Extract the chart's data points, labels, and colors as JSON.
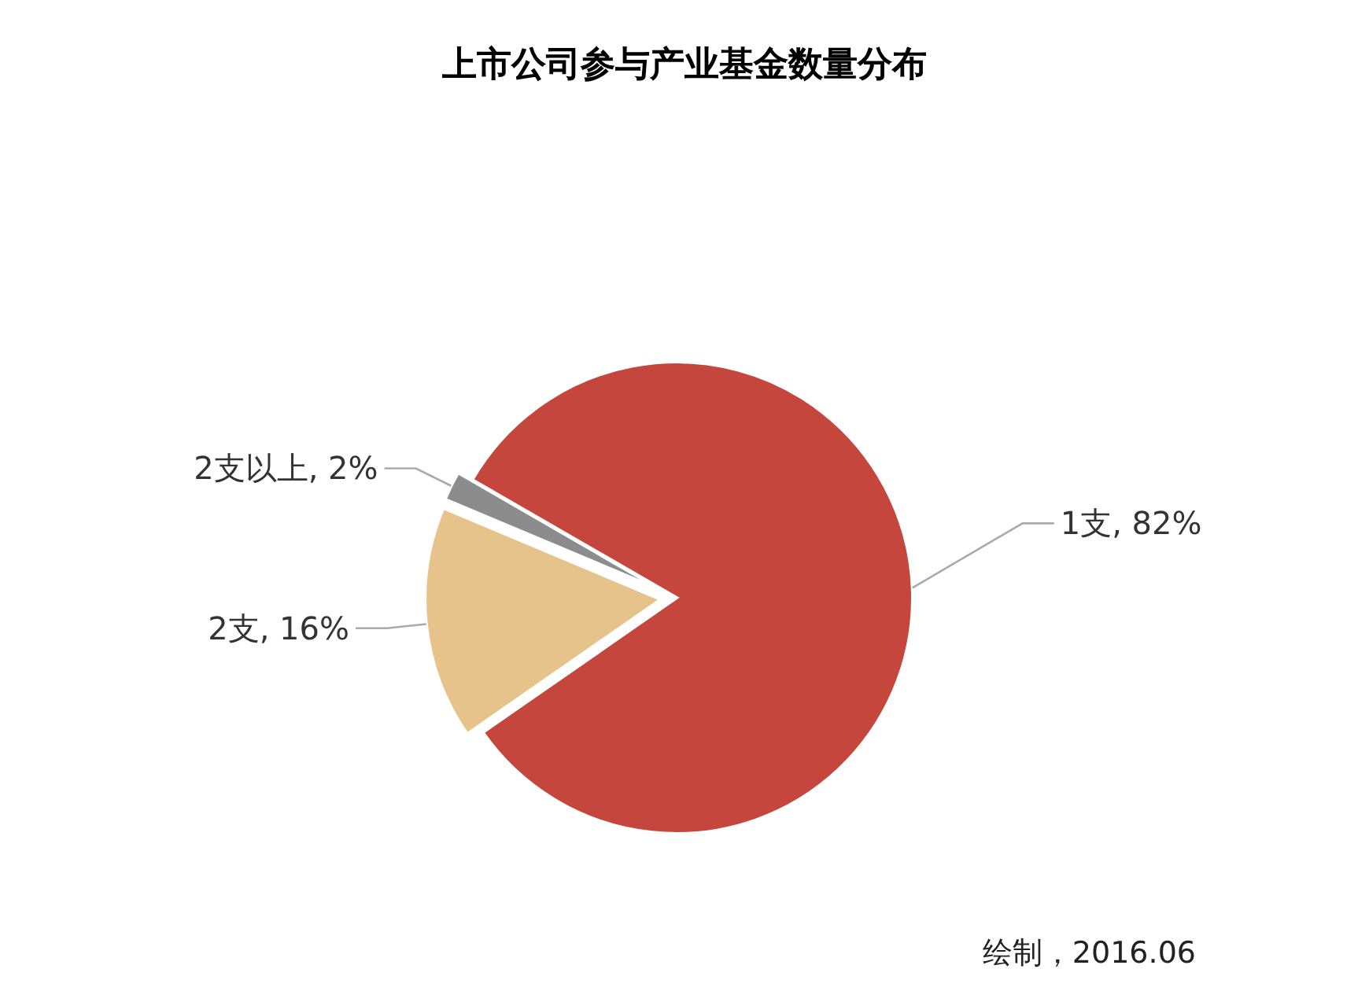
{
  "chart_data": {
    "type": "pie",
    "title": "上市公司参与产业基金数量分布",
    "categories": [
      "1支",
      "2支",
      "2支以上"
    ],
    "values": [
      82,
      16,
      2
    ],
    "value_labels": [
      "82%",
      "16%",
      "2%"
    ],
    "colors": [
      "#c4463c",
      "#e6c38a",
      "#8c8c8c"
    ],
    "annotations": [
      "绘制，2016.06"
    ]
  }
}
